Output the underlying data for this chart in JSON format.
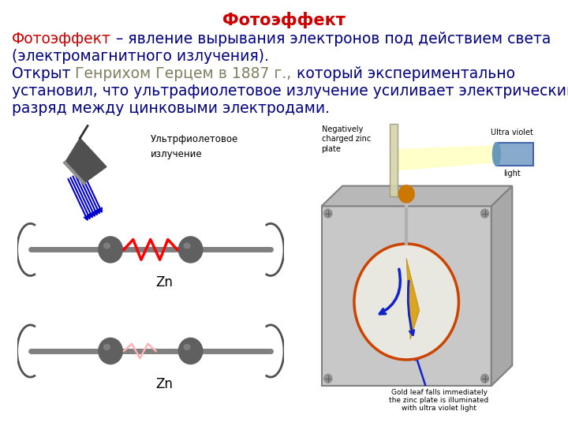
{
  "title": "Фотоэффект",
  "title_color": "#CC0000",
  "title_fontsize": 15,
  "bg_color": "#FFFFFF",
  "line1_part1": "Фотоэффект",
  "line1_part1_color": "#CC0000",
  "line1_rest": " – явление вырывания электронов под действием света",
  "line1_rest_color": "#000080",
  "line2": "(электромагнитного излучения).",
  "line2_color": "#000080",
  "line3_part1": "Открыт ",
  "line3_part1_color": "#000080",
  "line3_part2": "Генрихом Герцем в 1887 г.,",
  "line3_part2_color": "#808060",
  "line3_part3": " который экспериментально",
  "line3_part3_color": "#000080",
  "line4": "установил, что ультрафиолетовое излучение усиливает электрический",
  "line4_color": "#000080",
  "line5": "разряд между цинковыми электродами.",
  "line5_color": "#000080",
  "fontsize": 13.5,
  "font_family": "DejaVu Sans"
}
